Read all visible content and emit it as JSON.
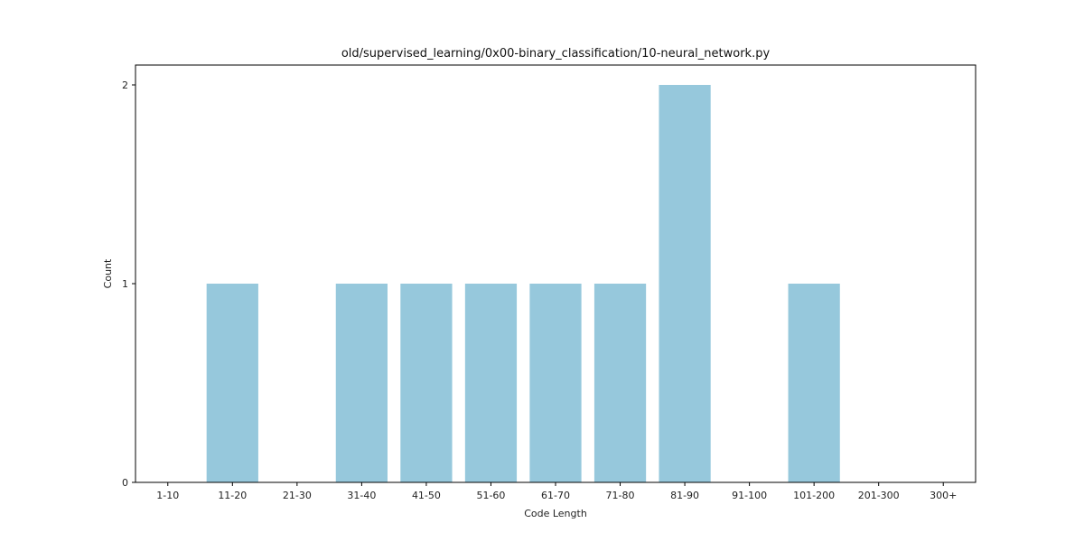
{
  "chart_data": {
    "type": "bar",
    "title": "old/supervised_learning/0x00-binary_classification/10-neural_network.py",
    "xlabel": "Code Length",
    "ylabel": "Count",
    "categories": [
      "1-10",
      "11-20",
      "21-30",
      "31-40",
      "41-50",
      "51-60",
      "61-70",
      "71-80",
      "81-90",
      "91-100",
      "101-200",
      "201-300",
      "300+"
    ],
    "values": [
      0,
      1,
      0,
      1,
      1,
      1,
      1,
      1,
      2,
      0,
      1,
      0,
      0
    ],
    "ylim": [
      0,
      2.1
    ],
    "yticks": [
      0,
      1,
      2
    ],
    "bar_color": "#96c8dc",
    "grid": false
  }
}
